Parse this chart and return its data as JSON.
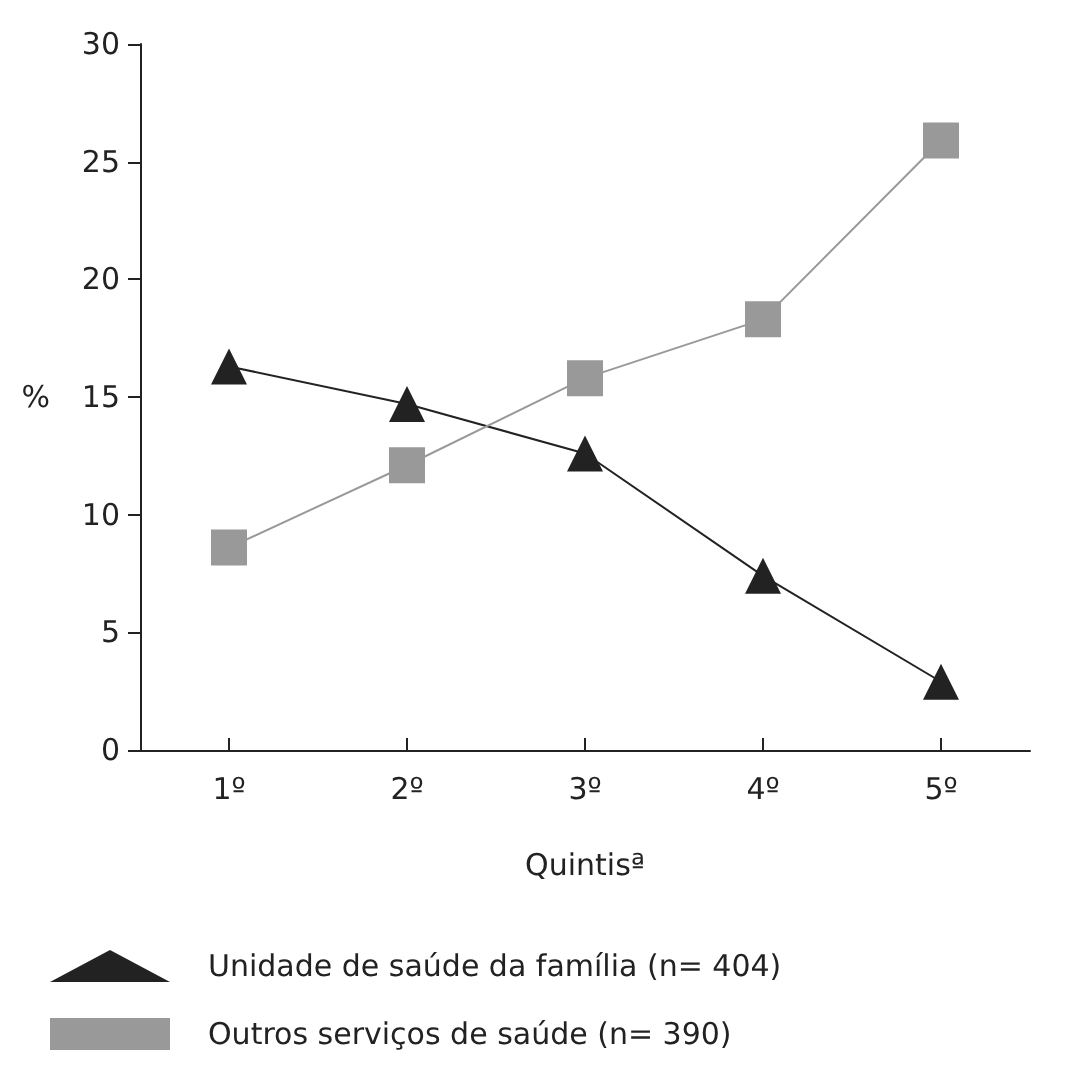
{
  "chart_data": {
    "type": "line",
    "xlabel": "Quintisª",
    "ylabel": "%",
    "categories": [
      "1º",
      "2º",
      "3º",
      "4º",
      "5º"
    ],
    "series": [
      {
        "name": "Unidade de saúde da família (n= 404)",
        "color": "#222222",
        "marker": "triangle",
        "values": [
          16.3,
          14.7,
          12.6,
          7.4,
          2.9
        ]
      },
      {
        "name": "Outros serviços de saúde (n= 390)",
        "color": "#999999",
        "marker": "square",
        "values": [
          8.6,
          12.1,
          15.8,
          18.3,
          25.9
        ]
      }
    ],
    "ylim": [
      0,
      30
    ],
    "yticks": [
      0,
      5,
      10,
      15,
      20,
      25,
      30
    ],
    "grid": false,
    "legend": "bottom",
    "line_style": "solid"
  }
}
